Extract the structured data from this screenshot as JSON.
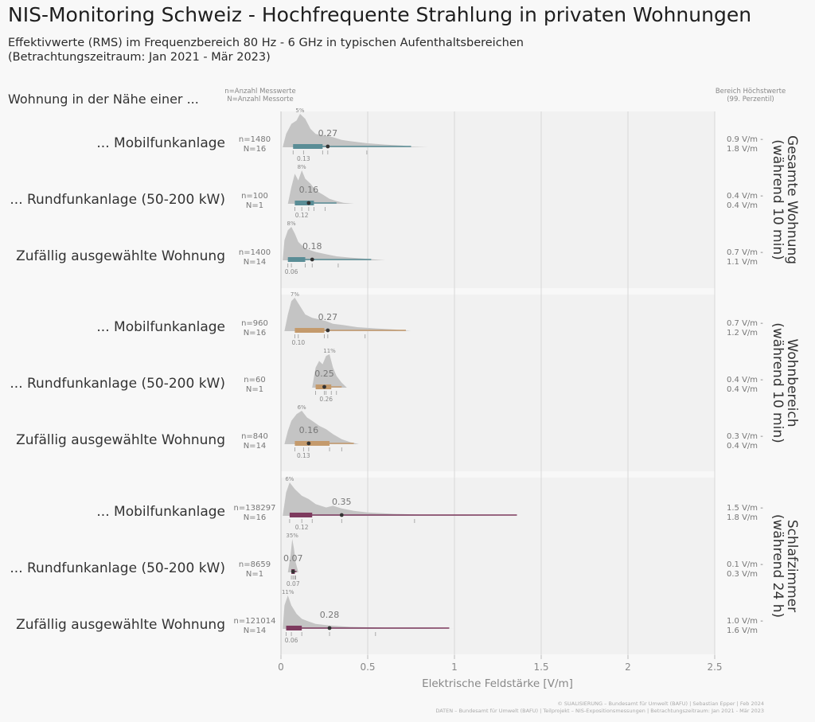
{
  "title": "NIS-Monitoring Schweiz - Hochfrequente Strahlung in privaten Wohnungen",
  "subtitle_lines": [
    "Effektivwerte (RMS) im Frequenzbereich 80 Hz - 6 GHz in typischen Aufenthaltsbereichen",
    "(Betrachtungszeitraum: Jan 2021 - Mär 2023)"
  ],
  "header_left": "Wohnung in der Nähe einer ...",
  "legend_n_lines": [
    "n=Anzahl Messwerte",
    "N=Anzahl Messorte"
  ],
  "legend_right_lines": [
    "Bereich Höchstwerte",
    "(99. Perzentil)"
  ],
  "credits_lines": [
    "© SUALISIERUNG – Bundesamt für Umwelt (BAFU) | Sebastian Epper | Feb 2024",
    "DATEN – Bundesamt für Umwelt (BAFU) | Teilprojekt – NIS-Expositionsmessungen | Betrachtungszeitraum: Jan 2021 - Mär 2023"
  ],
  "chart_data": {
    "type": "ridgeline",
    "xlabel": "Elektrische Feldstärke [V/m]",
    "xlim": [
      0,
      2.5
    ],
    "xticks": [
      "0",
      "0.5",
      "1",
      "1.5",
      "2",
      "2.5"
    ],
    "grid": true,
    "panels": [
      {
        "name_lines": [
          "Gesamte Wohnung",
          "(während 10 min)"
        ],
        "color": "#5a8d96",
        "rows": [
          {
            "label": "... Mobilfunkanlage",
            "n_text": "n=1480",
            "N_text": "N=16",
            "peak_text": "5%",
            "mean": 0.27,
            "mean_text": "0.27",
            "median": 0.13,
            "median_text": "0.13",
            "box": [
              0.07,
              0.24
            ],
            "whisker_end": 0.75,
            "range_lines": [
              "0.9 V/m -",
              "1.8 V/m"
            ],
            "density": [
              [
                0.01,
                0.0
              ],
              [
                0.03,
                0.4
              ],
              [
                0.06,
                0.7
              ],
              [
                0.09,
                0.8
              ],
              [
                0.11,
                1.0
              ],
              [
                0.14,
                0.85
              ],
              [
                0.17,
                0.55
              ],
              [
                0.2,
                0.4
              ],
              [
                0.25,
                0.35
              ],
              [
                0.3,
                0.3
              ],
              [
                0.35,
                0.22
              ],
              [
                0.4,
                0.18
              ],
              [
                0.5,
                0.12
              ],
              [
                0.6,
                0.08
              ],
              [
                0.7,
                0.05
              ],
              [
                0.75,
                0.02
              ],
              [
                0.85,
                0.0
              ]
            ]
          },
          {
            "label": "... Rundfunkanlage (50-200 kW)",
            "n_text": "n=100",
            "N_text": "N=1",
            "peak_text": "8%",
            "mean": 0.16,
            "mean_text": "0.16",
            "median": 0.12,
            "median_text": "0.12",
            "box": [
              0.08,
              0.19
            ],
            "whisker_end": 0.32,
            "range_lines": [
              "0.4 V/m -",
              "0.4 V/m"
            ],
            "density": [
              [
                0.04,
                0.0
              ],
              [
                0.06,
                0.5
              ],
              [
                0.08,
                0.9
              ],
              [
                0.1,
                0.7
              ],
              [
                0.12,
                1.0
              ],
              [
                0.14,
                0.75
              ],
              [
                0.17,
                0.6
              ],
              [
                0.2,
                0.4
              ],
              [
                0.24,
                0.28
              ],
              [
                0.28,
                0.15
              ],
              [
                0.32,
                0.08
              ],
              [
                0.36,
                0.03
              ],
              [
                0.42,
                0.0
              ]
            ]
          },
          {
            "label": "Zufällig ausgewählte Wohnung",
            "n_text": "n=1400",
            "N_text": "N=14",
            "peak_text": "8%",
            "mean": 0.18,
            "mean_text": "0.18",
            "median": 0.06,
            "median_text": "0.06",
            "box": [
              0.04,
              0.14
            ],
            "whisker_end": 0.52,
            "range_lines": [
              "0.7 V/m -",
              "1.1 V/m"
            ],
            "density": [
              [
                0.01,
                0.0
              ],
              [
                0.02,
                0.6
              ],
              [
                0.04,
                0.9
              ],
              [
                0.06,
                1.0
              ],
              [
                0.08,
                0.8
              ],
              [
                0.1,
                0.55
              ],
              [
                0.14,
                0.35
              ],
              [
                0.2,
                0.25
              ],
              [
                0.26,
                0.18
              ],
              [
                0.32,
                0.12
              ],
              [
                0.4,
                0.08
              ],
              [
                0.5,
                0.04
              ],
              [
                0.6,
                0.0
              ]
            ]
          }
        ]
      },
      {
        "name_lines": [
          "Wohnbereich",
          "(während 10 min)"
        ],
        "color": "#c49a6c",
        "rows": [
          {
            "label": "... Mobilfunkanlage",
            "n_text": "n=960",
            "N_text": "N=16",
            "peak_text": "7%",
            "mean": 0.27,
            "mean_text": "0.27",
            "median": 0.1,
            "median_text": "0.10",
            "box": [
              0.08,
              0.25
            ],
            "whisker_end": 0.72,
            "range_lines": [
              "0.7 V/m -",
              "1.2 V/m"
            ],
            "density": [
              [
                0.02,
                0.0
              ],
              [
                0.04,
                0.5
              ],
              [
                0.06,
                0.9
              ],
              [
                0.08,
                1.0
              ],
              [
                0.11,
                0.75
              ],
              [
                0.14,
                0.5
              ],
              [
                0.18,
                0.4
              ],
              [
                0.22,
                0.35
              ],
              [
                0.26,
                0.3
              ],
              [
                0.3,
                0.22
              ],
              [
                0.36,
                0.18
              ],
              [
                0.44,
                0.12
              ],
              [
                0.55,
                0.08
              ],
              [
                0.65,
                0.05
              ],
              [
                0.75,
                0.0
              ]
            ]
          },
          {
            "label": "... Rundfunkanlage (50-200 kW)",
            "n_text": "n=60",
            "N_text": "N=1",
            "peak_text": "11%",
            "mean": 0.25,
            "mean_text": "0.25",
            "median": 0.26,
            "median_text": "0.26",
            "box": [
              0.2,
              0.29
            ],
            "whisker_end": 0.35,
            "range_lines": [
              "0.4 V/m -",
              "0.4 V/m"
            ],
            "density": [
              [
                0.18,
                0.0
              ],
              [
                0.2,
                0.6
              ],
              [
                0.22,
                0.8
              ],
              [
                0.24,
                0.7
              ],
              [
                0.26,
                0.95
              ],
              [
                0.28,
                1.0
              ],
              [
                0.3,
                0.6
              ],
              [
                0.32,
                0.35
              ],
              [
                0.35,
                0.15
              ],
              [
                0.38,
                0.0
              ]
            ]
          },
          {
            "label": "Zufällig ausgewählte Wohnung",
            "n_text": "n=840",
            "N_text": "N=14",
            "peak_text": "6%",
            "mean": 0.16,
            "mean_text": "0.16",
            "median": 0.13,
            "median_text": "0.13",
            "box": [
              0.08,
              0.28
            ],
            "whisker_end": 0.42,
            "range_lines": [
              "0.3 V/m -",
              "0.4 V/m"
            ],
            "density": [
              [
                0.02,
                0.0
              ],
              [
                0.04,
                0.4
              ],
              [
                0.06,
                0.7
              ],
              [
                0.09,
                0.9
              ],
              [
                0.12,
                1.0
              ],
              [
                0.15,
                0.8
              ],
              [
                0.18,
                0.7
              ],
              [
                0.22,
                0.55
              ],
              [
                0.26,
                0.45
              ],
              [
                0.3,
                0.3
              ],
              [
                0.35,
                0.15
              ],
              [
                0.4,
                0.06
              ],
              [
                0.45,
                0.0
              ]
            ]
          }
        ]
      },
      {
        "name_lines": [
          "Schlafzimmer",
          "(während 24 h)"
        ],
        "color": "#7d3a5e",
        "rows": [
          {
            "label": "... Mobilfunkanlage",
            "n_text": "n=138297",
            "N_text": "N=16",
            "peak_text": "6%",
            "mean": 0.35,
            "mean_text": "0.35",
            "median": 0.12,
            "median_text": "0.12",
            "box": [
              0.05,
              0.18
            ],
            "whisker_end": 1.36,
            "range_lines": [
              "1.5 V/m -",
              "1.8 V/m"
            ],
            "density": [
              [
                0.01,
                0.0
              ],
              [
                0.03,
                0.7
              ],
              [
                0.05,
                1.0
              ],
              [
                0.08,
                0.8
              ],
              [
                0.12,
                0.6
              ],
              [
                0.16,
                0.5
              ],
              [
                0.2,
                0.35
              ],
              [
                0.26,
                0.25
              ],
              [
                0.3,
                0.3
              ],
              [
                0.35,
                0.22
              ],
              [
                0.42,
                0.15
              ],
              [
                0.5,
                0.1
              ],
              [
                0.65,
                0.06
              ],
              [
                0.85,
                0.03
              ],
              [
                1.1,
                0.01
              ],
              [
                1.3,
                0.0
              ]
            ]
          },
          {
            "label": "... Rundfunkanlage (50-200 kW)",
            "n_text": "n=8659",
            "N_text": "N=1",
            "peak_text": "35%",
            "mean": 0.07,
            "mean_text": "0.07",
            "median": 0.07,
            "median_text": "0.07",
            "box": [
              0.06,
              0.08
            ],
            "whisker_end": 0.09,
            "range_lines": [
              "0.1 V/m -",
              "0.3 V/m"
            ],
            "density": [
              [
                0.04,
                0.0
              ],
              [
                0.055,
                0.5
              ],
              [
                0.065,
                1.0
              ],
              [
                0.075,
                0.7
              ],
              [
                0.085,
                0.3
              ],
              [
                0.1,
                0.0
              ]
            ]
          },
          {
            "label": "Zufällig ausgewählte Wohnung",
            "n_text": "n=121014",
            "N_text": "N=14",
            "peak_text": "11%",
            "mean": 0.28,
            "mean_text": "0.28",
            "median": 0.06,
            "median_text": "0.06",
            "box": [
              0.03,
              0.12
            ],
            "whisker_end": 0.97,
            "range_lines": [
              "1.0 V/m -",
              "1.6 V/m"
            ],
            "density": [
              [
                0.01,
                0.0
              ],
              [
                0.02,
                0.7
              ],
              [
                0.04,
                1.0
              ],
              [
                0.06,
                0.7
              ],
              [
                0.09,
                0.45
              ],
              [
                0.12,
                0.3
              ],
              [
                0.16,
                0.22
              ],
              [
                0.2,
                0.15
              ],
              [
                0.28,
                0.1
              ],
              [
                0.4,
                0.06
              ],
              [
                0.55,
                0.04
              ],
              [
                0.75,
                0.02
              ],
              [
                1.0,
                0.0
              ]
            ]
          }
        ]
      }
    ]
  }
}
